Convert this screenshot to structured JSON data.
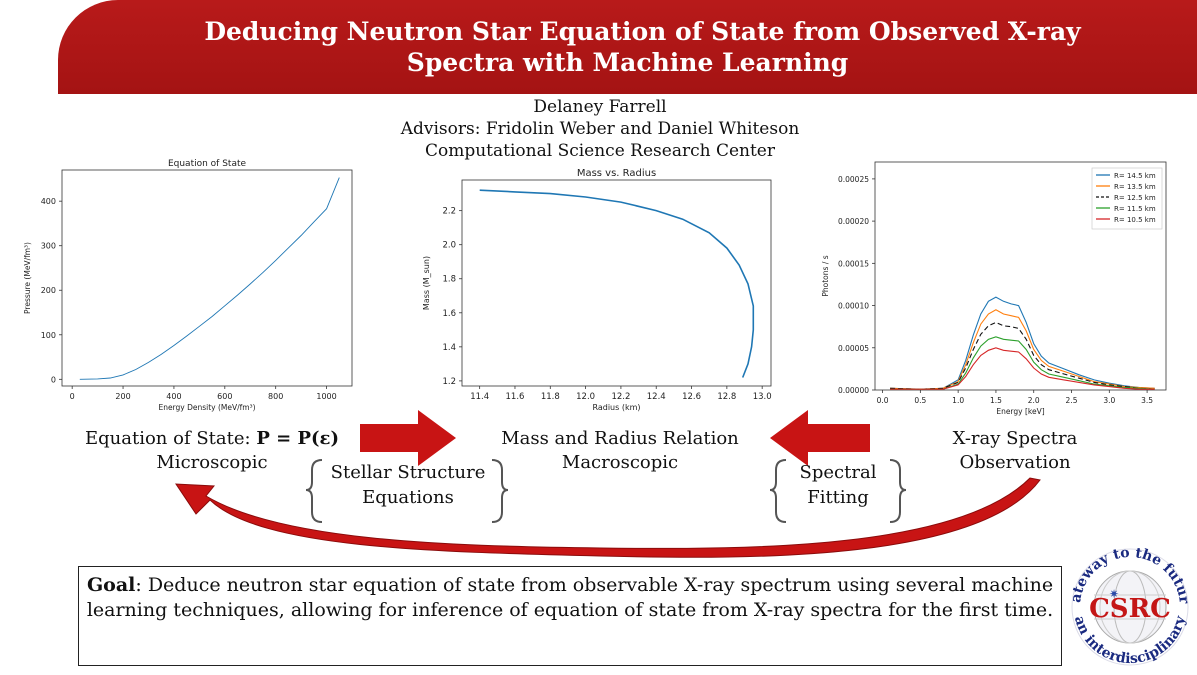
{
  "header": {
    "title_line1": "Deducing Neutron Star Equation of State from Observed X-ray",
    "title_line2": "Spectra with Machine Learning",
    "author": "Delaney Farrell",
    "advisors": "Advisors: Fridolin Weber and Daniel Whiteson",
    "institution": "Computational Science Research Center"
  },
  "captions": {
    "eos_label": "Equation of State:",
    "eos_formula": "P = P(ε)",
    "eos_sub": "Microscopic",
    "mr_line1": "Mass and Radius Relation",
    "mr_line2": "Macroscopic",
    "xray_line1": "X-ray Spectra",
    "xray_line2": "Observation",
    "stellar_line1": "Stellar Structure",
    "stellar_line2": "Equations",
    "spectral_line1": "Spectral",
    "spectral_line2": "Fitting"
  },
  "goal": {
    "label": "Goal",
    "text": ": Deduce neutron star equation of state from observable X-ray spectrum using several machine learning techniques, allowing for inference of equation of state from X-ray spectra for the first time."
  },
  "logo": {
    "center_text": "CSRC",
    "ring_top": "gateway to the future",
    "ring_bottom": "an interdisciplinary"
  },
  "colors": {
    "banner": "#b01616",
    "arrow_red": "#c81414",
    "line_blue": "#1f77b4"
  },
  "chart_data": [
    {
      "type": "line",
      "title": "Equation of State",
      "xlabel": "Energy Density (MeV/fm³)",
      "ylabel": "Pressure (MeV/fm³)",
      "xlim": [
        -40,
        1100
      ],
      "ylim": [
        -15,
        470
      ],
      "xticks": [
        0,
        200,
        400,
        600,
        800,
        1000
      ],
      "yticks": [
        0,
        100,
        200,
        300,
        400
      ],
      "x": [
        30,
        100,
        150,
        200,
        250,
        300,
        350,
        400,
        450,
        500,
        550,
        600,
        650,
        700,
        750,
        800,
        850,
        900,
        950,
        1000,
        1050
      ],
      "y": [
        0,
        1,
        3,
        10,
        22,
        38,
        56,
        76,
        97,
        119,
        141,
        165,
        189,
        214,
        240,
        267,
        295,
        323,
        353,
        383,
        453
      ]
    },
    {
      "type": "line",
      "title": "Mass vs. Radius",
      "xlabel": "Radius (km)",
      "ylabel": "Mass (M_sun)",
      "xlim": [
        11.3,
        13.05
      ],
      "ylim": [
        1.17,
        2.38
      ],
      "xticks": [
        11.4,
        11.6,
        11.8,
        12.0,
        12.2,
        12.4,
        12.6,
        12.8,
        13.0
      ],
      "yticks": [
        1.2,
        1.4,
        1.6,
        1.8,
        2.0,
        2.2
      ],
      "x": [
        11.4,
        11.6,
        11.8,
        12.0,
        12.2,
        12.4,
        12.55,
        12.7,
        12.8,
        12.87,
        12.92,
        12.95,
        12.95,
        12.94,
        12.92,
        12.89
      ],
      "y": [
        2.32,
        2.31,
        2.3,
        2.28,
        2.25,
        2.2,
        2.15,
        2.07,
        1.98,
        1.88,
        1.77,
        1.64,
        1.5,
        1.4,
        1.3,
        1.22
      ]
    },
    {
      "type": "line",
      "title": "",
      "xlabel": "Energy [keV]",
      "ylabel": "Photons / s",
      "xlim": [
        -0.1,
        3.75
      ],
      "ylim": [
        0,
        0.00027
      ],
      "xticks": [
        "0.0",
        "0.5",
        "1.0",
        "1.5",
        "2.0",
        "2.5",
        "3.0",
        "3.5"
      ],
      "yticks": [
        "0.00000",
        "0.00005",
        "0.00010",
        "0.00015",
        "0.00020",
        "0.00025"
      ],
      "legend_position": "top-right",
      "x": [
        0.1,
        0.5,
        0.8,
        1.0,
        1.1,
        1.2,
        1.3,
        1.4,
        1.5,
        1.6,
        1.7,
        1.8,
        1.9,
        2.0,
        2.1,
        2.2,
        2.4,
        2.6,
        2.8,
        3.0,
        3.2,
        3.4,
        3.6
      ],
      "series": [
        {
          "name": "R= 14.5 km",
          "color": "#1f77b4",
          "dash": "",
          "values": [
            2e-06,
            1e-06,
            2e-06,
            1.2e-05,
            3.5e-05,
            6.5e-05,
            9e-05,
            0.000105,
            0.00011,
            0.000105,
            0.000102,
            0.0001,
            8e-05,
            5.5e-05,
            4e-05,
            3.2e-05,
            2.5e-05,
            1.8e-05,
            1.2e-05,
            8e-06,
            5e-06,
            3e-06,
            2e-06
          ]
        },
        {
          "name": "R= 13.5 km",
          "color": "#ff7f0e",
          "dash": "",
          "values": [
            2e-06,
            1e-06,
            2e-06,
            1e-05,
            3e-05,
            5.6e-05,
            7.8e-05,
            9e-05,
            9.5e-05,
            9e-05,
            8.8e-05,
            8.6e-05,
            7e-05,
            4.8e-05,
            3.5e-05,
            2.8e-05,
            2.2e-05,
            1.6e-05,
            1e-05,
            7e-06,
            4e-06,
            3e-06,
            2e-06
          ]
        },
        {
          "name": "R= 12.5 km",
          "color": "#111111",
          "dash": "5,3",
          "values": [
            2e-06,
            1e-06,
            2e-06,
            9e-06,
            2.6e-05,
            4.8e-05,
            6.6e-05,
            7.6e-05,
            8e-05,
            7.6e-05,
            7.5e-05,
            7.3e-05,
            6e-05,
            4.1e-05,
            3e-05,
            2.4e-05,
            1.9e-05,
            1.4e-05,
            9e-06,
            6e-06,
            4e-06,
            2e-06,
            1e-06
          ]
        },
        {
          "name": "R= 11.5 km",
          "color": "#2ca02c",
          "dash": "",
          "values": [
            1e-06,
            1e-06,
            1e-06,
            7e-06,
            2e-05,
            3.8e-05,
            5.2e-05,
            6e-05,
            6.3e-05,
            6e-05,
            5.9e-05,
            5.8e-05,
            4.8e-05,
            3.3e-05,
            2.4e-05,
            1.9e-05,
            1.5e-05,
            1.1e-05,
            7e-06,
            5e-06,
            3e-06,
            2e-06,
            1e-06
          ]
        },
        {
          "name": "R= 10.5 km",
          "color": "#d62728",
          "dash": "",
          "values": [
            1e-06,
            1e-06,
            1e-06,
            6e-06,
            1.6e-05,
            3e-05,
            4.1e-05,
            4.7e-05,
            5e-05,
            4.7e-05,
            4.6e-05,
            4.5e-05,
            3.7e-05,
            2.6e-05,
            1.9e-05,
            1.5e-05,
            1.2e-05,
            9e-06,
            6e-06,
            4e-06,
            2e-06,
            1e-06,
            1e-06
          ]
        }
      ]
    }
  ]
}
